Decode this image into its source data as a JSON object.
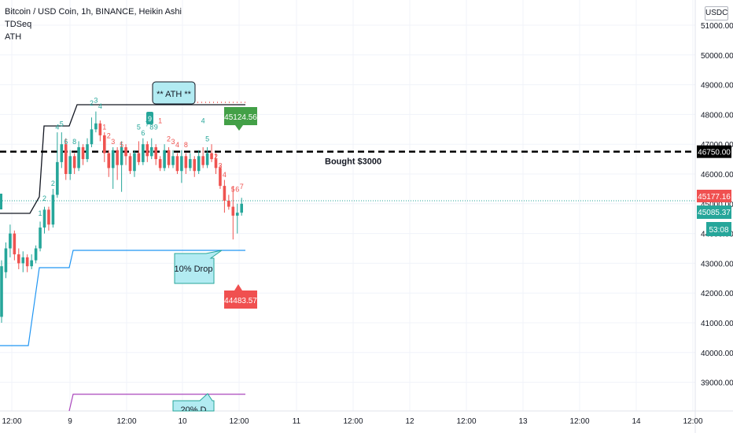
{
  "legend": {
    "symbol_line": "Bitcoin / USD Coin, 1h, BINANCE, Heikin Ashi",
    "indicator_1": "TDSeq",
    "indicator_2": "ATH"
  },
  "currency_badge": "USDC",
  "annotations": {
    "ath_callout": "** ATH **",
    "drop_callout": "10% Drop",
    "drop_callout_2": "20% D",
    "bought_line_label": "Bought $3000",
    "high_marker": "45124.56",
    "low_marker": "44483.57"
  },
  "price_labels": {
    "bought_level": "46750.00",
    "last_price": "45177.16",
    "current_price": "45085.37",
    "countdown": "53:08"
  },
  "colors": {
    "up": "#26a69a",
    "down": "#ef5350",
    "tdseq_up": "#26a69a",
    "tdseq_down": "#ef5350",
    "ath_line": "#131722",
    "drop10_line": "#2196f3",
    "drop20_line": "#ab47bc",
    "callout_fill": "#b2ebf2",
    "callout_border": "#26a69a"
  },
  "chart_data": {
    "type": "candlestick",
    "title": "Bitcoin / USD Coin, 1h, BINANCE, Heikin Ashi",
    "ylim": [
      38000,
      51200
    ],
    "y_ticks": [
      "51000.00",
      "50000.00",
      "49000.00",
      "48000.00",
      "47000.00",
      "46000.00",
      "45000.00",
      "44000.00",
      "43000.00",
      "42000.00",
      "41000.00",
      "40000.00",
      "39000.00"
    ],
    "x_ticks": [
      "12:00",
      "9",
      "12:00",
      "10",
      "12:00",
      "11",
      "12:00",
      "12",
      "12:00",
      "13",
      "12:00",
      "14",
      "12:00"
    ],
    "horizontal_lines": [
      {
        "label": "Bought $3000",
        "value": 46750,
        "style": "dashed"
      }
    ],
    "ath_level": 48300,
    "drop10_level": 43400,
    "drop20_level": 38600,
    "candles": [
      {
        "o": 41200,
        "c": 42900,
        "h": 43100,
        "l": 41000
      },
      {
        "o": 42700,
        "c": 43500,
        "h": 43700,
        "l": 42500
      },
      {
        "o": 43500,
        "c": 44000,
        "h": 44300,
        "l": 43200
      },
      {
        "o": 44000,
        "c": 43300,
        "h": 44100,
        "l": 43100
      },
      {
        "o": 43300,
        "c": 43000,
        "h": 43500,
        "l": 42800
      },
      {
        "o": 43000,
        "c": 43200,
        "h": 43400,
        "l": 42700
      },
      {
        "o": 43200,
        "c": 42900,
        "h": 43300,
        "l": 42700
      },
      {
        "o": 42900,
        "c": 43100,
        "h": 43300,
        "l": 42800
      },
      {
        "o": 43100,
        "c": 43500,
        "h": 43600,
        "l": 43000
      },
      {
        "o": 43500,
        "c": 44200,
        "h": 44400,
        "l": 43400
      },
      {
        "o": 44200,
        "c": 44800,
        "h": 44900,
        "l": 44000
      },
      {
        "o": 44800,
        "c": 44300,
        "h": 44900,
        "l": 44100
      },
      {
        "o": 44300,
        "c": 45300,
        "h": 45500,
        "l": 44200
      },
      {
        "o": 45300,
        "c": 46400,
        "h": 47400,
        "l": 45200
      },
      {
        "o": 46400,
        "c": 47000,
        "h": 47400,
        "l": 46200
      },
      {
        "o": 47000,
        "c": 46000,
        "h": 47200,
        "l": 45800
      },
      {
        "o": 46000,
        "c": 46600,
        "h": 46800,
        "l": 45800
      },
      {
        "o": 46600,
        "c": 46200,
        "h": 46700,
        "l": 46000
      },
      {
        "o": 46200,
        "c": 46900,
        "h": 47100,
        "l": 46100
      },
      {
        "o": 46900,
        "c": 46500,
        "h": 47000,
        "l": 46300
      },
      {
        "o": 46500,
        "c": 47000,
        "h": 47200,
        "l": 46400
      },
      {
        "o": 47000,
        "c": 47500,
        "h": 47900,
        "l": 46900
      },
      {
        "o": 47500,
        "c": 47700,
        "h": 48100,
        "l": 47400
      },
      {
        "o": 47700,
        "c": 47300,
        "h": 47800,
        "l": 47100
      },
      {
        "o": 47300,
        "c": 46700,
        "h": 47400,
        "l": 46400
      },
      {
        "o": 46700,
        "c": 46200,
        "h": 46800,
        "l": 45900
      },
      {
        "o": 46200,
        "c": 46800,
        "h": 46900,
        "l": 45500
      },
      {
        "o": 46800,
        "c": 46300,
        "h": 46900,
        "l": 45800
      },
      {
        "o": 46300,
        "c": 46900,
        "h": 47100,
        "l": 45400
      },
      {
        "o": 46900,
        "c": 46600,
        "h": 47000,
        "l": 46300
      },
      {
        "o": 46600,
        "c": 46100,
        "h": 46700,
        "l": 46000
      },
      {
        "o": 46100,
        "c": 46700,
        "h": 46800,
        "l": 45900
      },
      {
        "o": 46700,
        "c": 46400,
        "h": 47100,
        "l": 46300
      },
      {
        "o": 46400,
        "c": 47000,
        "h": 47200,
        "l": 46300
      },
      {
        "o": 47000,
        "c": 46600,
        "h": 47100,
        "l": 46400
      },
      {
        "o": 46600,
        "c": 46900,
        "h": 47200,
        "l": 46500
      },
      {
        "o": 46900,
        "c": 46500,
        "h": 47000,
        "l": 46300
      },
      {
        "o": 46500,
        "c": 46200,
        "h": 46600,
        "l": 46100
      },
      {
        "o": 46200,
        "c": 46800,
        "h": 47000,
        "l": 46100
      },
      {
        "o": 46800,
        "c": 46300,
        "h": 46900,
        "l": 46200
      },
      {
        "o": 46300,
        "c": 46600,
        "h": 46800,
        "l": 46200
      },
      {
        "o": 46600,
        "c": 46100,
        "h": 46700,
        "l": 46000
      },
      {
        "o": 46100,
        "c": 46600,
        "h": 46800,
        "l": 45700
      },
      {
        "o": 46600,
        "c": 46200,
        "h": 46700,
        "l": 46000
      },
      {
        "o": 46200,
        "c": 46500,
        "h": 46700,
        "l": 46100
      },
      {
        "o": 46500,
        "c": 46100,
        "h": 46600,
        "l": 45900
      },
      {
        "o": 46100,
        "c": 46600,
        "h": 46800,
        "l": 46000
      },
      {
        "o": 46600,
        "c": 46300,
        "h": 46900,
        "l": 46200
      },
      {
        "o": 46300,
        "c": 46700,
        "h": 46900,
        "l": 46200
      },
      {
        "o": 46700,
        "c": 46500,
        "h": 47000,
        "l": 46400
      },
      {
        "o": 46500,
        "c": 46200,
        "h": 46700,
        "l": 46000
      },
      {
        "o": 46200,
        "c": 45600,
        "h": 46300,
        "l": 45500
      },
      {
        "o": 45600,
        "c": 45100,
        "h": 45800,
        "l": 44700
      },
      {
        "o": 45100,
        "c": 44900,
        "h": 45300,
        "l": 44800
      },
      {
        "o": 44900,
        "c": 44600,
        "h": 45600,
        "l": 43800
      },
      {
        "o": 44600,
        "c": 44700,
        "h": 45000,
        "l": 44000
      },
      {
        "o": 44700,
        "c": 45000,
        "h": 45200,
        "l": 44600
      }
    ],
    "tdseq_labels": [
      {
        "i": 9,
        "text": "1",
        "dir": "up",
        "level": 44600
      },
      {
        "i": 10,
        "text": "2",
        "dir": "up",
        "level": 45100
      },
      {
        "i": 12,
        "text": "2",
        "dir": "up",
        "level": 45600
      },
      {
        "i": 13,
        "text": "4",
        "dir": "up",
        "level": 47500
      },
      {
        "i": 14,
        "text": "5",
        "dir": "up",
        "level": 47600
      },
      {
        "i": 15,
        "text": "6",
        "dir": "up",
        "level": 47000
      },
      {
        "i": 17,
        "text": "8",
        "dir": "up",
        "level": 47000
      },
      {
        "i": 21,
        "text": "2",
        "dir": "up",
        "level": 48300
      },
      {
        "i": 22,
        "text": "3",
        "dir": "up",
        "level": 48400
      },
      {
        "i": 23,
        "text": "4",
        "dir": "up",
        "level": 48200
      },
      {
        "i": 24,
        "text": "1",
        "dir": "down",
        "level": 47500
      },
      {
        "i": 25,
        "text": "2",
        "dir": "down",
        "level": 47200
      },
      {
        "i": 26,
        "text": "3",
        "dir": "down",
        "level": 47000
      },
      {
        "i": 28,
        "text": "5",
        "dir": "down",
        "level": 46900
      },
      {
        "i": 32,
        "text": "5",
        "dir": "up",
        "level": 47500
      },
      {
        "i": 33,
        "text": "6",
        "dir": "up",
        "level": 47300
      },
      {
        "i": 34,
        "text": "7",
        "dir": "up",
        "level": 47600
      },
      {
        "i": 35,
        "text": "8",
        "dir": "up",
        "level": 47500
      },
      {
        "i": 36,
        "text": "9",
        "dir": "up",
        "level": 47500
      },
      {
        "i": 37,
        "text": "1",
        "dir": "down",
        "level": 47700
      },
      {
        "i": 39,
        "text": "2",
        "dir": "down",
        "level": 47100
      },
      {
        "i": 40,
        "text": "3",
        "dir": "down",
        "level": 47000
      },
      {
        "i": 41,
        "text": "4",
        "dir": "down",
        "level": 46900
      },
      {
        "i": 43,
        "text": "8",
        "dir": "down",
        "level": 46900
      },
      {
        "i": 47,
        "text": "4",
        "dir": "up",
        "level": 47700
      },
      {
        "i": 48,
        "text": "5",
        "dir": "up",
        "level": 47100
      },
      {
        "i": 50,
        "text": "2",
        "dir": "down",
        "level": 46500
      },
      {
        "i": 51,
        "text": "3",
        "dir": "down",
        "level": 46200
      },
      {
        "i": 52,
        "text": "4",
        "dir": "down",
        "level": 45900
      },
      {
        "i": 54,
        "text": "5",
        "dir": "down",
        "level": 45400
      },
      {
        "i": 55,
        "text": "6",
        "dir": "down",
        "level": 45400
      },
      {
        "i": 56,
        "text": "7",
        "dir": "down",
        "level": 45500
      }
    ]
  }
}
